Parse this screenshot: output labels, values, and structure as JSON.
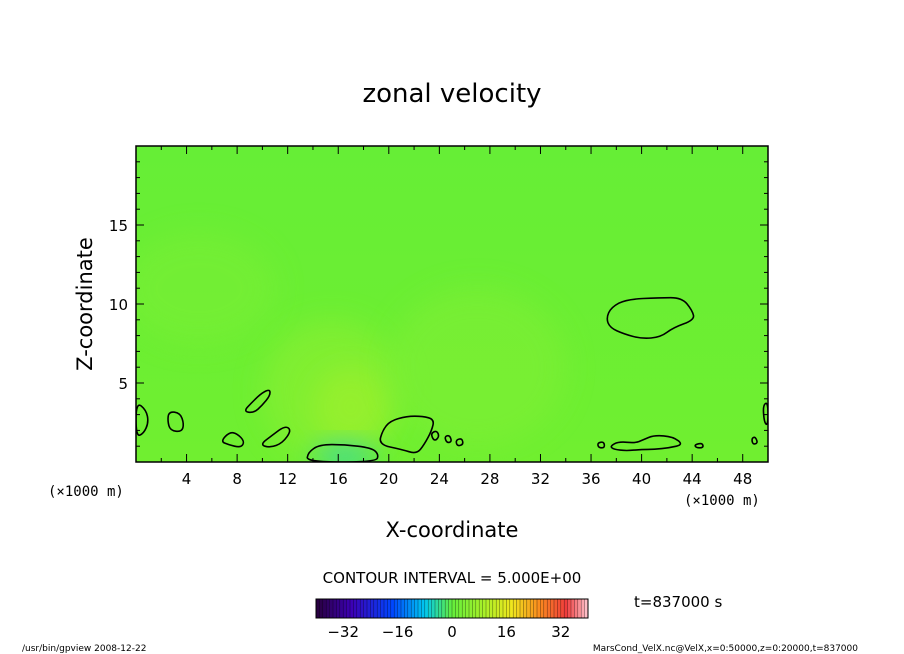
{
  "chart_data": {
    "type": "heatmap",
    "title": "zonal velocity",
    "xlabel": "X-coordinate",
    "ylabel": "Z-coordinate",
    "x_unit": "(×1000 m)",
    "y_unit": "(×1000 m)",
    "xlim": [
      0,
      50
    ],
    "ylim": [
      0,
      20
    ],
    "xticks": [
      4,
      8,
      12,
      16,
      20,
      24,
      28,
      32,
      36,
      40,
      44,
      48
    ],
    "yticks": [
      5,
      10,
      15
    ],
    "contour_interval_text": "CONTOUR INTERVAL = 5.000E+00",
    "time_text": "t=837000 s",
    "colorbar": {
      "range": [
        -40,
        40
      ],
      "ticks": [
        -32,
        -16,
        0,
        16,
        32
      ]
    },
    "dominant_value": 0,
    "contours": [
      {
        "level": 5,
        "points": [
          [
            37.2,
            9.1
          ],
          [
            37.6,
            9.8
          ],
          [
            38.8,
            10.3
          ],
          [
            41.4,
            10.4
          ],
          [
            43.2,
            10.4
          ],
          [
            44.0,
            9.6
          ],
          [
            44.2,
            9.0
          ],
          [
            42.5,
            8.5
          ],
          [
            41.5,
            7.9
          ],
          [
            40.0,
            7.8
          ],
          [
            38.6,
            8.1
          ],
          [
            37.5,
            8.5
          ]
        ]
      },
      {
        "level": 5,
        "points": [
          [
            8.5,
            3.2
          ],
          [
            9.2,
            3.8
          ],
          [
            10.0,
            4.4
          ],
          [
            10.6,
            4.6
          ],
          [
            10.6,
            4.2
          ],
          [
            10.0,
            3.6
          ],
          [
            9.3,
            3.1
          ]
        ]
      },
      {
        "level": 5,
        "points": [
          [
            0,
            3.8
          ],
          [
            0.8,
            3.3
          ],
          [
            1.0,
            2.5
          ],
          [
            0.6,
            1.8
          ],
          [
            0,
            1.6
          ]
        ]
      },
      {
        "level": 5,
        "points": [
          [
            2.6,
            3.2
          ],
          [
            3.5,
            3.1
          ],
          [
            3.8,
            2.4
          ],
          [
            3.6,
            1.9
          ],
          [
            2.7,
            2.0
          ],
          [
            2.5,
            2.6
          ]
        ]
      },
      {
        "level": 5,
        "points": [
          [
            19.2,
            1.1
          ],
          [
            19.5,
            2.0
          ],
          [
            20.1,
            2.6
          ],
          [
            21.4,
            2.9
          ],
          [
            22.7,
            2.9
          ],
          [
            23.6,
            2.7
          ],
          [
            23.4,
            2.0
          ],
          [
            22.8,
            1.1
          ],
          [
            22.2,
            0.5
          ],
          [
            21.0,
            0.8
          ]
        ]
      },
      {
        "level": 5,
        "points": [
          [
            13.5,
            0
          ],
          [
            13.6,
            0.6
          ],
          [
            14.5,
            1.1
          ],
          [
            16.5,
            1.1
          ],
          [
            18.6,
            0.9
          ],
          [
            19.2,
            0.5
          ],
          [
            19.0,
            0
          ]
        ]
      },
      {
        "level": 5,
        "points": [
          [
            37.5,
            1.0
          ],
          [
            38.2,
            1.3
          ],
          [
            39.5,
            1.2
          ],
          [
            40.1,
            1.4
          ],
          [
            41.0,
            1.7
          ],
          [
            42.5,
            1.6
          ],
          [
            43.3,
            1.1
          ],
          [
            42.2,
            0.9
          ],
          [
            41.0,
            0.8
          ],
          [
            40.0,
            0.8
          ],
          [
            38.8,
            0.7
          ],
          [
            37.8,
            0.8
          ]
        ]
      },
      {
        "level": 5,
        "points": [
          [
            6.7,
            1.3
          ],
          [
            7.4,
            1.9
          ],
          [
            8.0,
            1.8
          ],
          [
            8.6,
            1.3
          ],
          [
            8.3,
            0.9
          ],
          [
            7.3,
            1.1
          ]
        ]
      },
      {
        "level": 5,
        "points": [
          [
            9.8,
            1.1
          ],
          [
            10.8,
            1.7
          ],
          [
            11.8,
            2.3
          ],
          [
            12.3,
            2.0
          ],
          [
            11.6,
            1.2
          ],
          [
            10.6,
            0.9
          ]
        ]
      },
      {
        "level": 5,
        "points": [
          [
            23.3,
            1.8
          ],
          [
            23.8,
            2.0
          ],
          [
            24.0,
            1.6
          ],
          [
            23.6,
            1.3
          ]
        ]
      },
      {
        "level": 5,
        "points": [
          [
            24.4,
            1.6
          ],
          [
            24.8,
            1.7
          ],
          [
            25.0,
            1.3
          ],
          [
            24.6,
            1.2
          ]
        ]
      },
      {
        "level": 5,
        "points": [
          [
            25.3,
            1.4
          ],
          [
            25.8,
            1.5
          ],
          [
            25.9,
            1.1
          ],
          [
            25.4,
            1.0
          ]
        ]
      },
      {
        "level": 5,
        "points": [
          [
            49.6,
            3.6
          ],
          [
            50,
            3.8
          ],
          [
            50,
            2.3
          ],
          [
            49.7,
            2.5
          ]
        ]
      },
      {
        "level": 5,
        "points": [
          [
            48.7,
            1.5
          ],
          [
            49.0,
            1.6
          ],
          [
            49.2,
            1.2
          ],
          [
            48.8,
            1.1
          ]
        ]
      },
      {
        "level": 5,
        "points": [
          [
            36.5,
            1.2
          ],
          [
            37.0,
            1.3
          ],
          [
            37.1,
            0.9
          ],
          [
            36.6,
            0.9
          ]
        ]
      },
      {
        "level": 5,
        "points": [
          [
            44.2,
            1.1
          ],
          [
            44.8,
            1.2
          ],
          [
            44.9,
            0.9
          ],
          [
            44.3,
            0.9
          ]
        ]
      }
    ],
    "color_blobs": [
      {
        "x": 15.5,
        "z": 4.5,
        "rx": 5.5,
        "rz": 4.5,
        "value": 6
      },
      {
        "x": 17,
        "z": 3.5,
        "rx": 3,
        "rz": 2.5,
        "value": 9
      },
      {
        "x": 27,
        "z": 6,
        "rx": 7,
        "rz": 5,
        "value": 4
      },
      {
        "x": 5,
        "z": 11,
        "rx": 6,
        "rz": 3.5,
        "value": 3
      },
      {
        "x": 16.5,
        "z": 0.4,
        "rx": 2.5,
        "rz": 0.8,
        "value": -8
      }
    ],
    "grid": false
  },
  "footer": {
    "left": "/usr/bin/gpview   2008-12-22",
    "right": "MarsCond_VelX.nc@VelX,x=0:50000,z=0:20000,t=837000"
  }
}
